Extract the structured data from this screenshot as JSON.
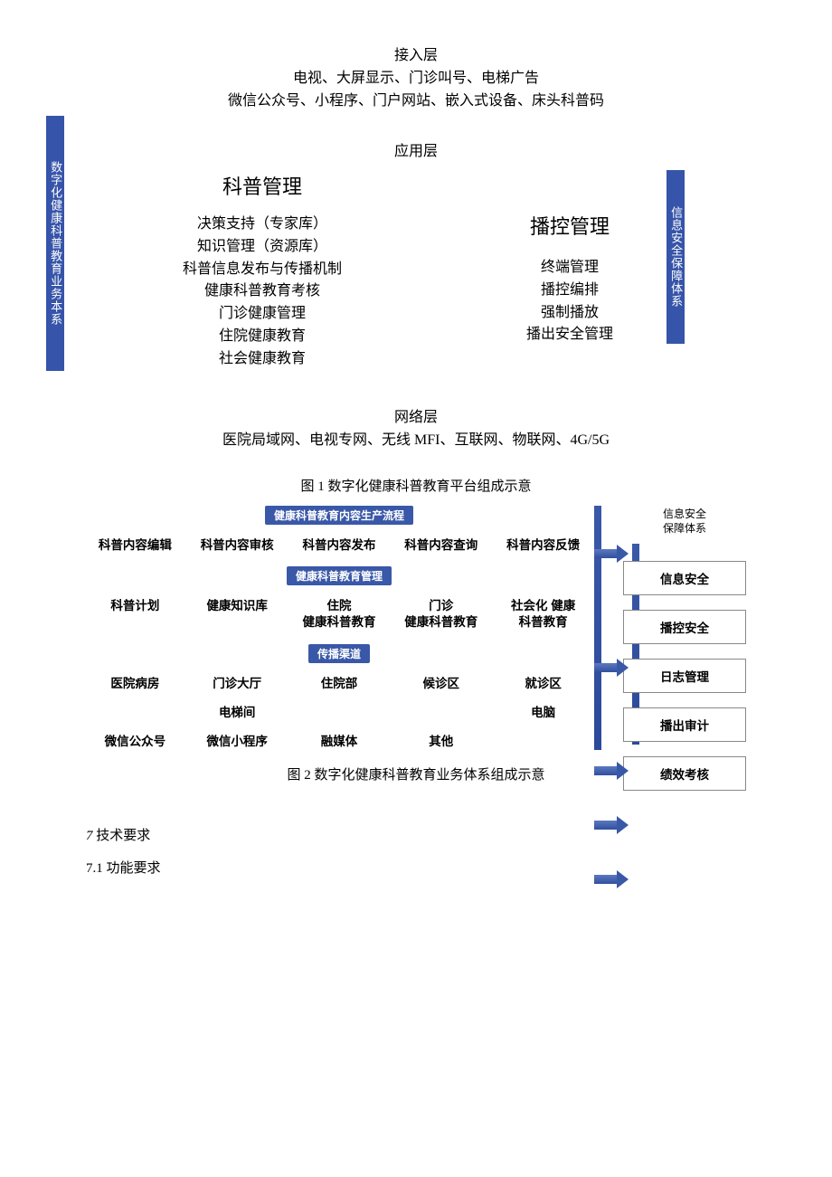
{
  "colors": {
    "vbar": "#3654a9",
    "fig2_hdr": "#3a58a8",
    "fig2_sep": "#3a58a8"
  },
  "fig1": {
    "access": {
      "title": "接入层",
      "line1": "电视、大屏显示、门诊叫号、电梯广告",
      "line2": "微信公众号、小程序、门户网站、嵌入式设备、床头科普码"
    },
    "apply_title": "应用层",
    "left": {
      "title": "科普管理",
      "items": [
        "决策支持（专家库）",
        "知识管理（资源库）",
        "科普信息发布与传播机制",
        "健康科普教育考核",
        "门诊健康管理",
        "住院健康教育",
        "社会健康教育"
      ]
    },
    "right": {
      "title": "播控管理",
      "items": [
        "终端管理",
        "播控编排",
        "强制播放",
        "播出安全管理"
      ]
    },
    "net": {
      "title": "网络层",
      "line": "医院局域网、电视专网、无线 MFI、互联网、物联网、4G/5G"
    },
    "vbar_left": "数字化健康科普教育业务本系",
    "vbar_right": "信息安全保障体系",
    "caption": "图 1 数字化健康科普教育平台组成示意"
  },
  "fig2": {
    "blocks": [
      {
        "header": "健康科普教育内容生产流程",
        "rows": [
          [
            "科普内容编辑",
            "科普内容审核",
            "科普内容发布",
            "科普内容查询",
            "科普内容反馈"
          ]
        ]
      },
      {
        "header": "健康科普教育管理",
        "rows": [
          [
            "科普计划",
            "健康知识库",
            "住院\n健康科普教育",
            "门诊\n健康科普教育",
            "社会化 健康\n科普教育"
          ]
        ]
      },
      {
        "header": "传播渠道",
        "rows": [
          [
            "医院病房",
            "门诊大厅",
            "住院部",
            "候诊区",
            "就诊区"
          ],
          [
            "",
            "电梯间",
            "",
            "",
            "电脑"
          ],
          [
            "微信公众号",
            "微信小程序",
            "融媒体",
            "其他",
            ""
          ]
        ]
      }
    ],
    "side_header": "信息安全\n保障体系",
    "side_boxes": [
      "信息安全",
      "播控安全",
      "日志管理",
      "播出审计",
      "绩效考核"
    ],
    "arrow_tops": [
      44,
      170,
      284,
      344,
      404
    ],
    "caption": "图 2 数字化健康科普教育业务体系组成示意"
  },
  "body": {
    "sec7": "7 技术要求",
    "sec71": "7.1 功能要求"
  }
}
